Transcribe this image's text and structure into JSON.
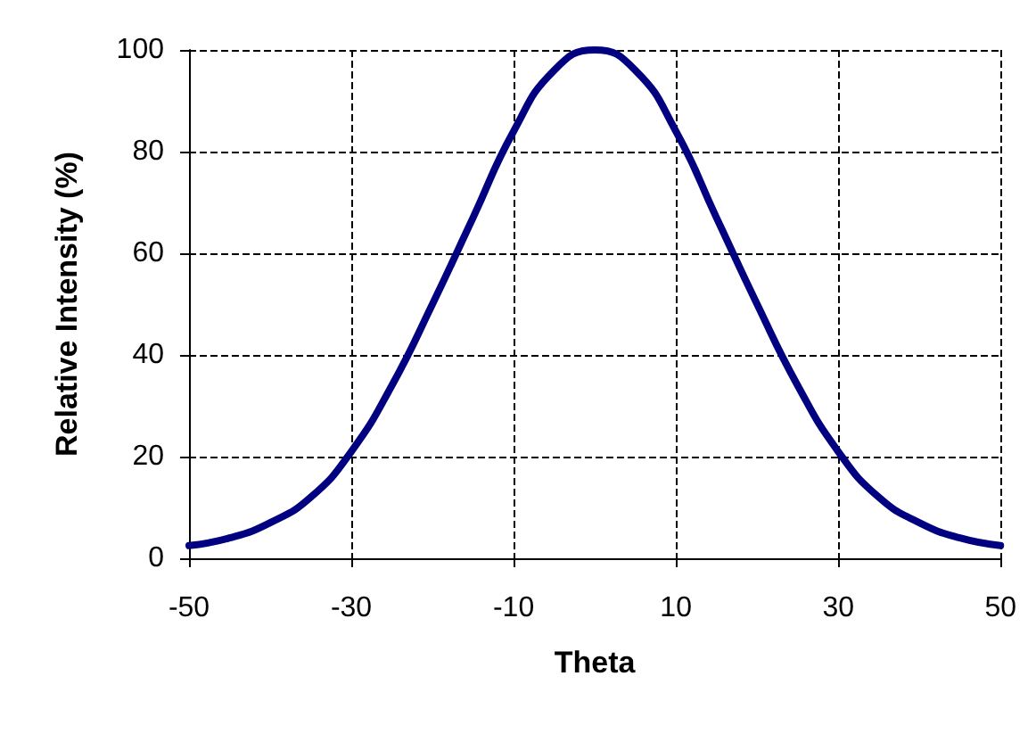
{
  "chart_data": {
    "type": "line",
    "xlabel": "Theta",
    "ylabel": "Relative Intensity (%)",
    "x": [
      -50,
      -45,
      -40,
      -35,
      -30,
      -25,
      -20,
      -15,
      -10,
      -5,
      0,
      5,
      10,
      15,
      20,
      25,
      30,
      35,
      40,
      45,
      50
    ],
    "series": [
      {
        "color": "#000080",
        "values": [
          2.5,
          4,
          7,
          12,
          21,
          34,
          50,
          67,
          84,
          96,
          100,
          96,
          84,
          67,
          50,
          34,
          21,
          12,
          7,
          4,
          2.5
        ]
      }
    ],
    "xlim": [
      -50,
      50
    ],
    "xticks": [
      -50,
      -30,
      -10,
      10,
      30,
      50
    ],
    "ylim": [
      0,
      100
    ],
    "yticks": [
      0,
      20,
      40,
      60,
      80,
      100
    ],
    "grid": true,
    "marker": "none",
    "line_style": "solid"
  }
}
